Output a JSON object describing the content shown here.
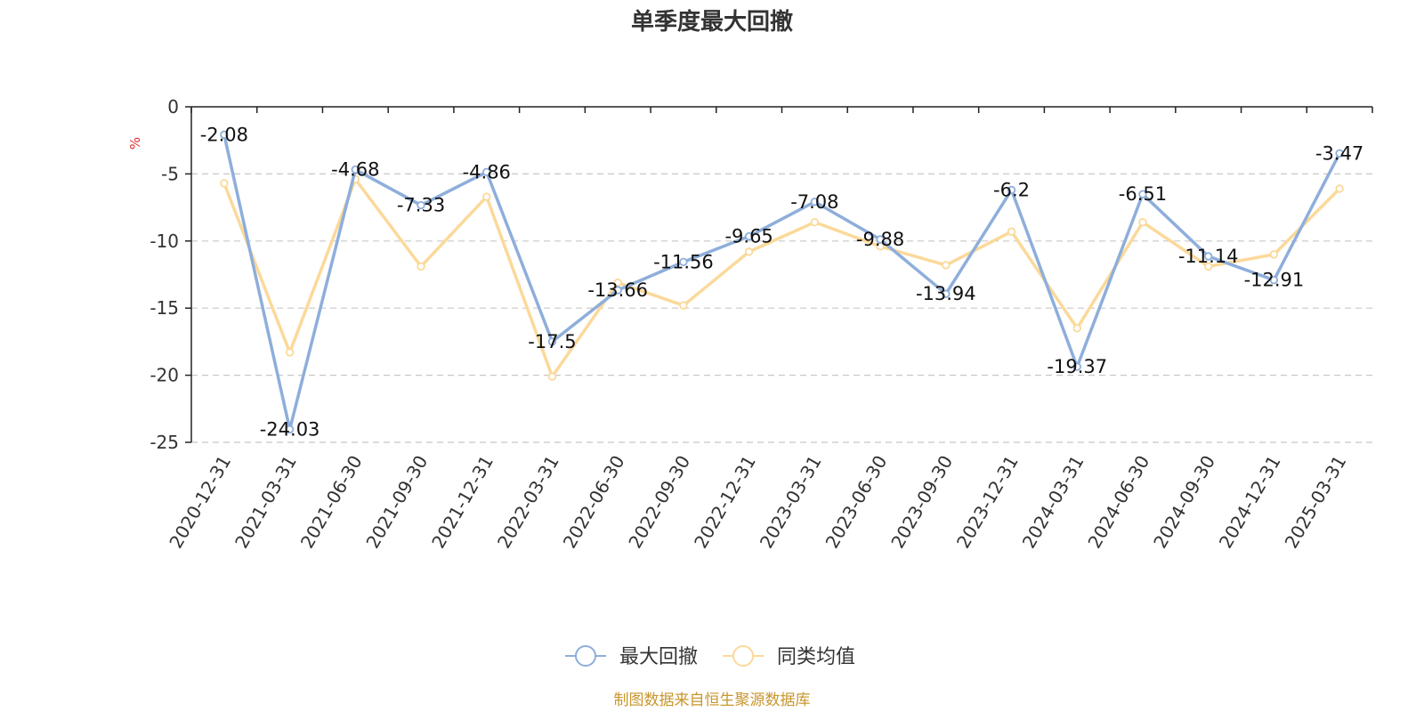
{
  "chart_data": {
    "type": "line",
    "title": "单季度最大回撤",
    "unit": "%",
    "categories": [
      "2020-12-31",
      "2021-03-31",
      "2021-06-30",
      "2021-09-30",
      "2021-12-31",
      "2022-03-31",
      "2022-06-30",
      "2022-09-30",
      "2022-12-31",
      "2023-03-31",
      "2023-06-30",
      "2023-09-30",
      "2023-12-31",
      "2024-03-31",
      "2024-06-30",
      "2024-09-30",
      "2024-12-31",
      "2025-03-31"
    ],
    "ylim": [
      -25,
      0
    ],
    "yticks": [
      0,
      -5,
      -10,
      -15,
      -20,
      -25
    ],
    "grid": true,
    "legend_position": "bottom-center",
    "series": [
      {
        "name": "最大回撤",
        "color": "#8eaedb",
        "values": [
          -2.08,
          -24.03,
          -4.68,
          -7.33,
          -4.86,
          -17.5,
          -13.66,
          -11.56,
          -9.65,
          -7.08,
          -9.88,
          -13.94,
          -6.2,
          -19.37,
          -6.51,
          -11.14,
          -12.91,
          -3.47
        ],
        "labels": [
          "-2.08",
          "-24.03",
          "-4.68",
          "-7.33",
          "-4.86",
          "-17.5",
          "-13.66",
          "-11.56",
          "-9.65",
          "-7.08",
          "-9.88",
          "-13.94",
          "-6.2",
          "-19.37",
          "-6.51",
          "-11.14",
          "-12.91",
          "-3.47"
        ]
      },
      {
        "name": "同类均值",
        "color": "#fbd99a",
        "values": [
          -5.7,
          -18.3,
          -5.4,
          -11.9,
          -6.7,
          -20.1,
          -13.1,
          -14.8,
          -10.8,
          -8.6,
          -10.4,
          -11.8,
          -9.3,
          -16.5,
          -8.6,
          -11.9,
          -11.0,
          -6.1
        ]
      }
    ],
    "source": "制图数据来自恒生聚源数据库"
  }
}
